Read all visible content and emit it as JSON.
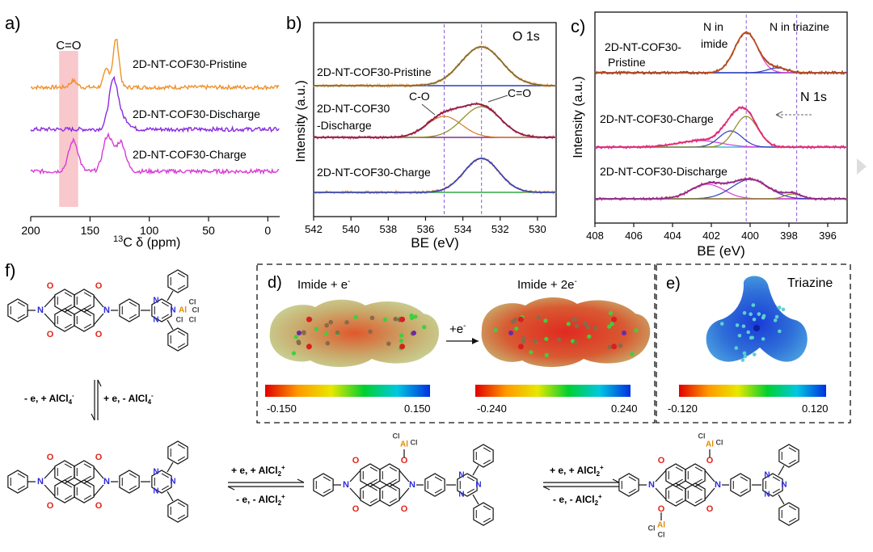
{
  "panels": {
    "a": {
      "label": "a)"
    },
    "b": {
      "label": "b)"
    },
    "c": {
      "label": "c)"
    },
    "d": {
      "label": "d)"
    },
    "e": {
      "label": "e)"
    },
    "f": {
      "label": "f)"
    }
  },
  "chart_data": [
    {
      "panel": "a",
      "type": "line",
      "title": "",
      "xlabel": "13C δ (ppm)",
      "xlabel_sup": "13",
      "xlabel_main": "C δ (ppm)",
      "ylabel": "",
      "xlim": [
        200,
        -10
      ],
      "xticks": [
        200,
        150,
        100,
        50,
        0
      ],
      "highlight": {
        "label": "C=O",
        "from": 176,
        "to": 160,
        "color": "#f8c8cc"
      },
      "series": [
        {
          "name": "2D-NT-COF30-Pristine",
          "color": "#f0922b",
          "peaks": [
            {
              "x": 128,
              "h": 60,
              "w": 2.5
            },
            {
              "x": 136,
              "h": 22,
              "w": 2.5
            },
            {
              "x": 164,
              "h": 8,
              "w": 3
            }
          ]
        },
        {
          "name": "2D-NT-COF30-Discharge",
          "color": "#8a2be2",
          "peaks": [
            {
              "x": 130,
              "h": 62,
              "w": 4
            },
            {
              "x": 120,
              "h": 10,
              "w": 4
            }
          ]
        },
        {
          "name": "2D-NT-COF30-Charge",
          "color": "#d63cd6",
          "peaks": [
            {
              "x": 164,
              "h": 38,
              "w": 4
            },
            {
              "x": 135,
              "h": 44,
              "w": 4
            },
            {
              "x": 124,
              "h": 36,
              "w": 4
            }
          ]
        }
      ]
    },
    {
      "panel": "b",
      "type": "line",
      "title": "O 1s",
      "xlabel": "BE (eV)",
      "ylabel": "Intensity (a.u.)",
      "xlim": [
        542,
        529
      ],
      "xticks": [
        542,
        540,
        538,
        536,
        534,
        532,
        530
      ],
      "vlines": [
        535.0,
        533.0
      ],
      "annotations": [
        "C-O",
        "C=O"
      ],
      "series": [
        {
          "name": "2D-NT-COF30-Pristine",
          "components": [
            {
              "center": 533.0,
              "height": 48,
              "fwhm": 2.6
            }
          ]
        },
        {
          "name": "2D-NT-COF30 -Discharge",
          "name_lines": [
            "2D-NT-COF30",
            "-Discharge"
          ],
          "components": [
            {
              "center": 535.0,
              "height": 26,
              "fwhm": 2.2
            },
            {
              "center": 533.0,
              "height": 38,
              "fwhm": 2.4
            }
          ]
        },
        {
          "name": "2D-NT-COF30-Charge",
          "components": [
            {
              "center": 533.0,
              "height": 42,
              "fwhm": 2.2
            }
          ]
        }
      ]
    },
    {
      "panel": "c",
      "type": "line",
      "title": "N 1s",
      "xlabel": "BE (eV)",
      "ylabel": "Intensity (a.u.)",
      "xlim": [
        408,
        395
      ],
      "xticks": [
        408,
        406,
        404,
        402,
        400,
        398,
        396
      ],
      "vlines": [
        400.2,
        397.6
      ],
      "annotations": [
        "N in imide",
        "N in triazine"
      ],
      "series": [
        {
          "name": "2D-NT-COF30-Pristine",
          "name_lines": [
            "2D-NT-COF30-",
            "Pristine"
          ],
          "components": [
            {
              "center": 400.2,
              "height": 50,
              "fwhm": 1.4
            },
            {
              "center": 398.6,
              "height": 6,
              "fwhm": 1.2
            }
          ]
        },
        {
          "name": "2D-NT-COF30-Charge",
          "components": [
            {
              "center": 402.6,
              "height": 8,
              "fwhm": 2.6
            },
            {
              "center": 401.0,
              "height": 20,
              "fwhm": 1.4
            },
            {
              "center": 400.2,
              "height": 38,
              "fwhm": 1.4
            }
          ]
        },
        {
          "name": "2D-NT-COF30-Discharge",
          "components": [
            {
              "center": 402.2,
              "height": 18,
              "fwhm": 2.0
            },
            {
              "center": 400.0,
              "height": 24,
              "fwhm": 2.2
            },
            {
              "center": 397.8,
              "height": 6,
              "fwhm": 1.0
            }
          ]
        }
      ]
    }
  ],
  "esp": {
    "d": {
      "left_title": "Imide + e",
      "left_title_sup": "-",
      "right_title": "Imide + 2e",
      "right_title_sup": "-",
      "arrow_label": "+e",
      "arrow_label_sup": "-",
      "left_scale": [
        "-0.150",
        "0.150"
      ],
      "right_scale": [
        "-0.240",
        "0.240"
      ]
    },
    "e": {
      "title": "Triazine",
      "scale": [
        "-0.120",
        "0.120"
      ]
    }
  },
  "scheme": {
    "vertical": {
      "left": "- e, + AlCl",
      "left_sup": "4",
      "left_sup2": "-",
      "right": "+ e, - AlCl",
      "right_sup": "4",
      "right_sup2": "-"
    },
    "step1": {
      "top": "+ e, + AlCl",
      "top_sub": "2",
      "top_sup": "+",
      "bottom": "- e, - AlCl",
      "bottom_sub": "2",
      "bottom_sup": "+"
    },
    "step2": {
      "top": "+ e, + AlCl",
      "top_sub": "2",
      "top_sup": "+",
      "bottom": "- e, - AlCl",
      "bottom_sub": "2",
      "bottom_sup": "+"
    },
    "atoms": {
      "O": "O",
      "N": "N",
      "Al": "Al",
      "Cl": "Cl"
    }
  },
  "colors": {
    "pristine_a": "#f0922b",
    "discharge_a": "#8a2be2",
    "charge_a": "#d63cd6",
    "fit_green": "#2ea84a",
    "fit_olive": "#8a8a1a",
    "baseline_blue": "#2c3fbf",
    "vline": "#8a5cd6",
    "O": "#e0241b",
    "N": "#2a2adc",
    "Al": "#e08a00"
  }
}
